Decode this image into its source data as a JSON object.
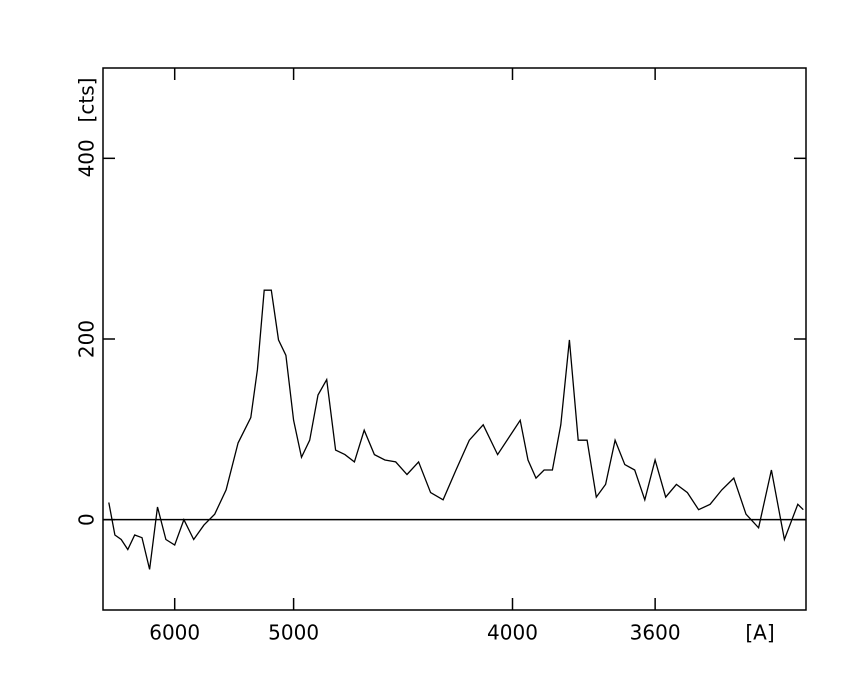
{
  "chart_data": {
    "type": "line",
    "x_label": "[A]",
    "y_label": "[cts]",
    "xscale": "inverse-square",
    "xlim": [
      7000,
      3285
    ],
    "ylim": [
      -100,
      500
    ],
    "xticks": [
      6000,
      5000,
      4000,
      3600
    ],
    "yticks": [
      0,
      200,
      400
    ],
    "reference_line": 0,
    "x": [
      6900,
      6800,
      6700,
      6600,
      6500,
      6400,
      6300,
      6200,
      6100,
      6000,
      5900,
      5800,
      5700,
      5600,
      5500,
      5400,
      5300,
      5250,
      5200,
      5150,
      5100,
      5050,
      5000,
      4950,
      4900,
      4850,
      4800,
      4750,
      4700,
      4650,
      4600,
      4550,
      4500,
      4450,
      4400,
      4350,
      4300,
      4250,
      4200,
      4150,
      4100,
      4050,
      4000,
      3975,
      3950,
      3925,
      3900,
      3875,
      3850,
      3825,
      3800,
      3775,
      3750,
      3725,
      3700,
      3675,
      3650,
      3625,
      3600,
      3575,
      3550,
      3525,
      3500,
      3475,
      3450,
      3425,
      3400,
      3375,
      3350,
      3325,
      3300,
      3290
    ],
    "series": [
      {
        "color": "#000000",
        "values": [
          19,
          -17,
          -22,
          -33,
          -17,
          -20,
          -55,
          14,
          -22,
          -28,
          0,
          -22,
          -6,
          6,
          33,
          85,
          113,
          166,
          254,
          254,
          199,
          182,
          110,
          69,
          88,
          138,
          155,
          77,
          72,
          64,
          99,
          72,
          66,
          64,
          50,
          64,
          30,
          22,
          55,
          88,
          105,
          72,
          97,
          110,
          66,
          46,
          55,
          55,
          105,
          199,
          88,
          88,
          25,
          39,
          88,
          61,
          55,
          22,
          66,
          25,
          39,
          30,
          11,
          17,
          33,
          46,
          6,
          -9,
          55,
          -22,
          17,
          11
        ]
      }
    ]
  }
}
